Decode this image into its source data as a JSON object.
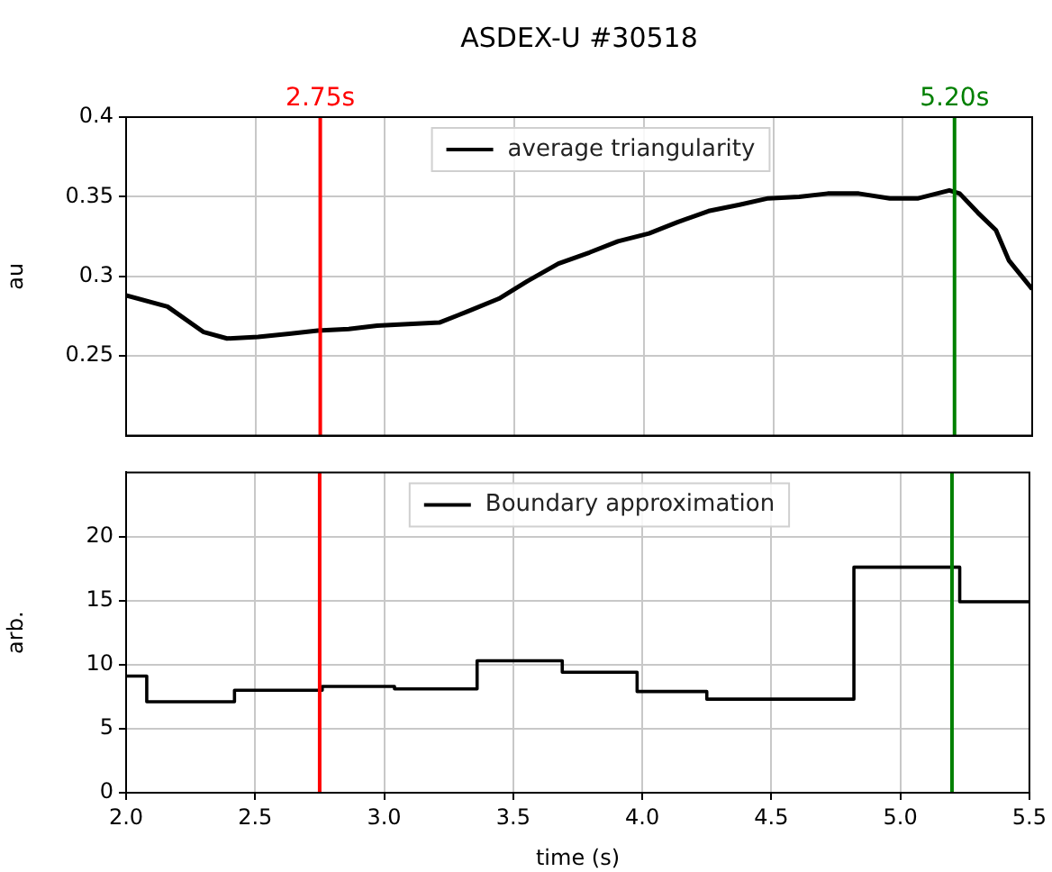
{
  "chart_data": [
    {
      "type": "line",
      "title": "ASDEX-U #30518",
      "ylabel": "au",
      "xlim": [
        2.0,
        5.5
      ],
      "xticks": [
        {
          "value": 2.0,
          "label": null
        },
        {
          "value": 2.5,
          "label": null
        },
        {
          "value": 3.0,
          "label": null
        },
        {
          "value": 3.5,
          "label": null
        },
        {
          "value": 4.0,
          "label": null
        },
        {
          "value": 4.5,
          "label": null
        },
        {
          "value": 5.0,
          "label": null
        },
        {
          "value": 5.5,
          "label": null
        }
      ],
      "ylim": [
        0.2,
        0.4
      ],
      "yticks": [
        0.25,
        0.3,
        0.35,
        0.4
      ],
      "tick_labels": "y",
      "grid": true,
      "legend": "top",
      "series": [
        {
          "name": "average triangularity",
          "color": "#000000",
          "x": [
            2.0,
            2.16,
            2.3,
            2.39,
            2.51,
            2.63,
            2.74,
            2.86,
            2.97,
            3.09,
            3.21,
            3.32,
            3.44,
            3.55,
            3.67,
            3.79,
            3.9,
            4.02,
            4.13,
            4.25,
            4.37,
            4.48,
            4.6,
            4.71,
            4.83,
            4.95,
            5.06,
            5.18,
            5.22,
            5.29,
            5.36,
            5.41,
            5.5
          ],
          "values": [
            0.288,
            0.281,
            0.265,
            0.261,
            0.262,
            0.264,
            0.266,
            0.267,
            0.269,
            0.27,
            0.271,
            0.278,
            0.286,
            0.297,
            0.308,
            0.315,
            0.322,
            0.327,
            0.334,
            0.341,
            0.345,
            0.349,
            0.35,
            0.352,
            0.352,
            0.349,
            0.349,
            0.354,
            0.352,
            0.34,
            0.329,
            0.31,
            0.292
          ]
        }
      ],
      "ref_lines": [
        {
          "axis": "x",
          "value": 2.75,
          "label": "2.75s",
          "color": "#ff0000"
        },
        {
          "axis": "x",
          "value": 5.2,
          "label": "5.20s",
          "color": "#008000"
        }
      ]
    },
    {
      "type": "step",
      "xlabel": "time (s)",
      "ylabel": "arb.",
      "xlim": [
        2.0,
        5.5
      ],
      "xticks": [
        {
          "value": 2.0,
          "label": "2.0"
        },
        {
          "value": 2.5,
          "label": "2.5"
        },
        {
          "value": 3.0,
          "label": "3.0"
        },
        {
          "value": 3.5,
          "label": "3.5"
        },
        {
          "value": 4.0,
          "label": "4.0"
        },
        {
          "value": 4.5,
          "label": "4.5"
        },
        {
          "value": 5.0,
          "label": "5.0"
        },
        {
          "value": 5.5,
          "label": "5.5"
        }
      ],
      "ylim": [
        0,
        25
      ],
      "yticks": [
        0,
        5,
        10,
        15,
        20
      ],
      "grid": true,
      "legend": "top",
      "series": [
        {
          "name": "Boundary approximation",
          "color": "#000000",
          "x": [
            2.0,
            2.08,
            2.42,
            2.76,
            3.04,
            3.36,
            3.69,
            3.98,
            4.25,
            4.82,
            5.23,
            5.5
          ],
          "values": [
            9.1,
            7.1,
            8.0,
            8.3,
            8.1,
            10.3,
            9.4,
            7.9,
            7.3,
            17.6,
            14.9,
            14.9
          ]
        }
      ],
      "ref_lines": [
        {
          "axis": "x",
          "value": 2.75,
          "color": "#ff0000"
        },
        {
          "axis": "x",
          "value": 5.2,
          "color": "#008000"
        }
      ]
    }
  ]
}
